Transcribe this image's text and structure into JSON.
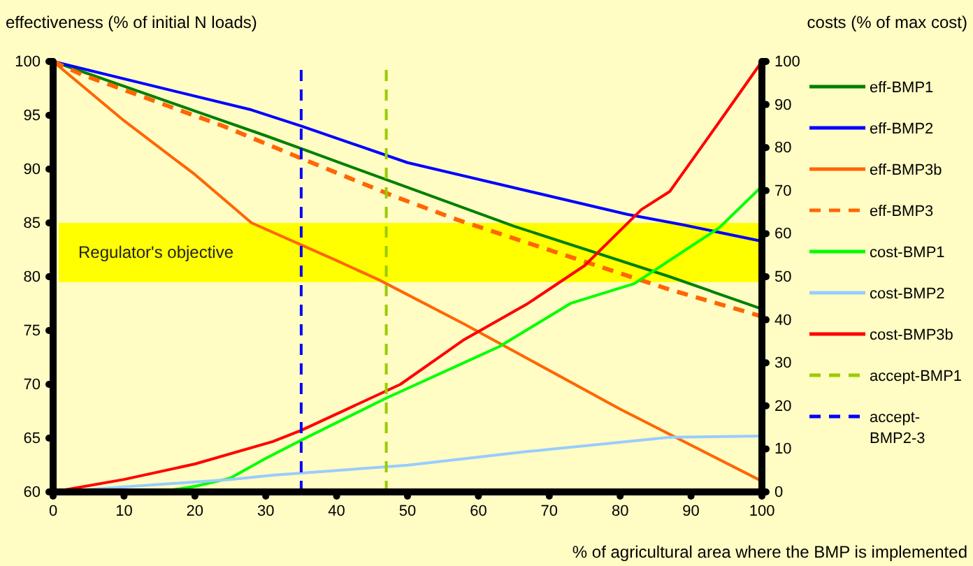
{
  "chart_data": {
    "type": "line",
    "xlabel": "% of agricultural area where the BMP is implemented",
    "ylabel": "effectiveness (% of initial N loads)",
    "y2label": "costs (% of max cost)",
    "xlim": [
      0,
      100
    ],
    "xticks": [
      0,
      10,
      20,
      30,
      40,
      50,
      60,
      70,
      80,
      90,
      100
    ],
    "ylim": [
      60,
      100
    ],
    "yticks": [
      60,
      65,
      70,
      75,
      80,
      85,
      90,
      95,
      100
    ],
    "y2lim": [
      0,
      100
    ],
    "y2ticks": [
      0,
      10,
      20,
      30,
      40,
      50,
      60,
      70,
      80,
      90,
      100
    ],
    "legend": "right",
    "grid": false,
    "bands": [
      {
        "axis": "y",
        "from": 79.5,
        "to": 85,
        "label": "Regulator's objective",
        "color": "#ffff00"
      }
    ],
    "series": [
      {
        "name": "eff-BMP1",
        "color": "#008000",
        "x": [
          0,
          10,
          20,
          30,
          35,
          50,
          65,
          87,
          100
        ],
        "values": [
          100,
          97.7,
          95.4,
          93.1,
          91.9,
          88.3,
          84.7,
          80,
          77
        ]
      },
      {
        "name": "eff-BMP2",
        "color": "#0000ff",
        "x": [
          0,
          28,
          35,
          50,
          81,
          89,
          100
        ],
        "values": [
          100,
          95.5,
          94,
          90.6,
          85.8,
          84.8,
          83.3
        ]
      },
      {
        "name": "eff-BMP3b",
        "color": "#ff6600",
        "x": [
          0,
          10,
          20,
          28,
          40,
          46,
          58,
          80,
          100
        ],
        "values": [
          100,
          94.5,
          89.5,
          85,
          81.5,
          79.7,
          75.6,
          67.7,
          61
        ]
      },
      {
        "name": "eff-BMP3",
        "color": "#ff6600",
        "line_style": "dashed",
        "x": [
          0,
          4,
          14,
          24,
          35,
          48,
          57,
          87,
          98,
          100
        ],
        "values": [
          100,
          98.8,
          96.4,
          94,
          91,
          87.5,
          85.3,
          78.8,
          76.7,
          76.3
        ]
      },
      {
        "name": "cost-BMP1",
        "color": "#00ff00",
        "axis": "y2",
        "x": [
          0,
          15,
          20,
          25,
          30,
          35,
          47,
          63,
          73,
          82,
          94,
          100
        ],
        "values": [
          0,
          0,
          1.3,
          3.2,
          7.8,
          12,
          21.8,
          33.8,
          43.8,
          48.4,
          61.4,
          71
        ]
      },
      {
        "name": "cost-BMP2",
        "color": "#99ccff",
        "axis": "y2",
        "x": [
          0,
          25,
          31,
          50,
          67,
          87,
          100
        ],
        "values": [
          0,
          2.9,
          3.9,
          6.2,
          9.4,
          12.7,
          13
        ]
      },
      {
        "name": "cost-BMP3b",
        "color": "#ff0000",
        "axis": "y2",
        "x": [
          0,
          10,
          20,
          31,
          35,
          49,
          58,
          67,
          75,
          83,
          87,
          94,
          100
        ],
        "values": [
          0,
          2.9,
          6.5,
          11.7,
          14.3,
          25,
          35.4,
          43.8,
          52.6,
          65.6,
          69.8,
          86,
          100
        ]
      },
      {
        "name": "accept-BMP1",
        "color": "#99cc00",
        "line_style": "dashed",
        "x": [
          47,
          47
        ],
        "values": [
          60,
          100
        ]
      },
      {
        "name": "accept-BMP2-3",
        "color": "#0000ff",
        "line_style": "dashed",
        "x": [
          35,
          35
        ],
        "values": [
          60,
          100
        ]
      }
    ]
  }
}
